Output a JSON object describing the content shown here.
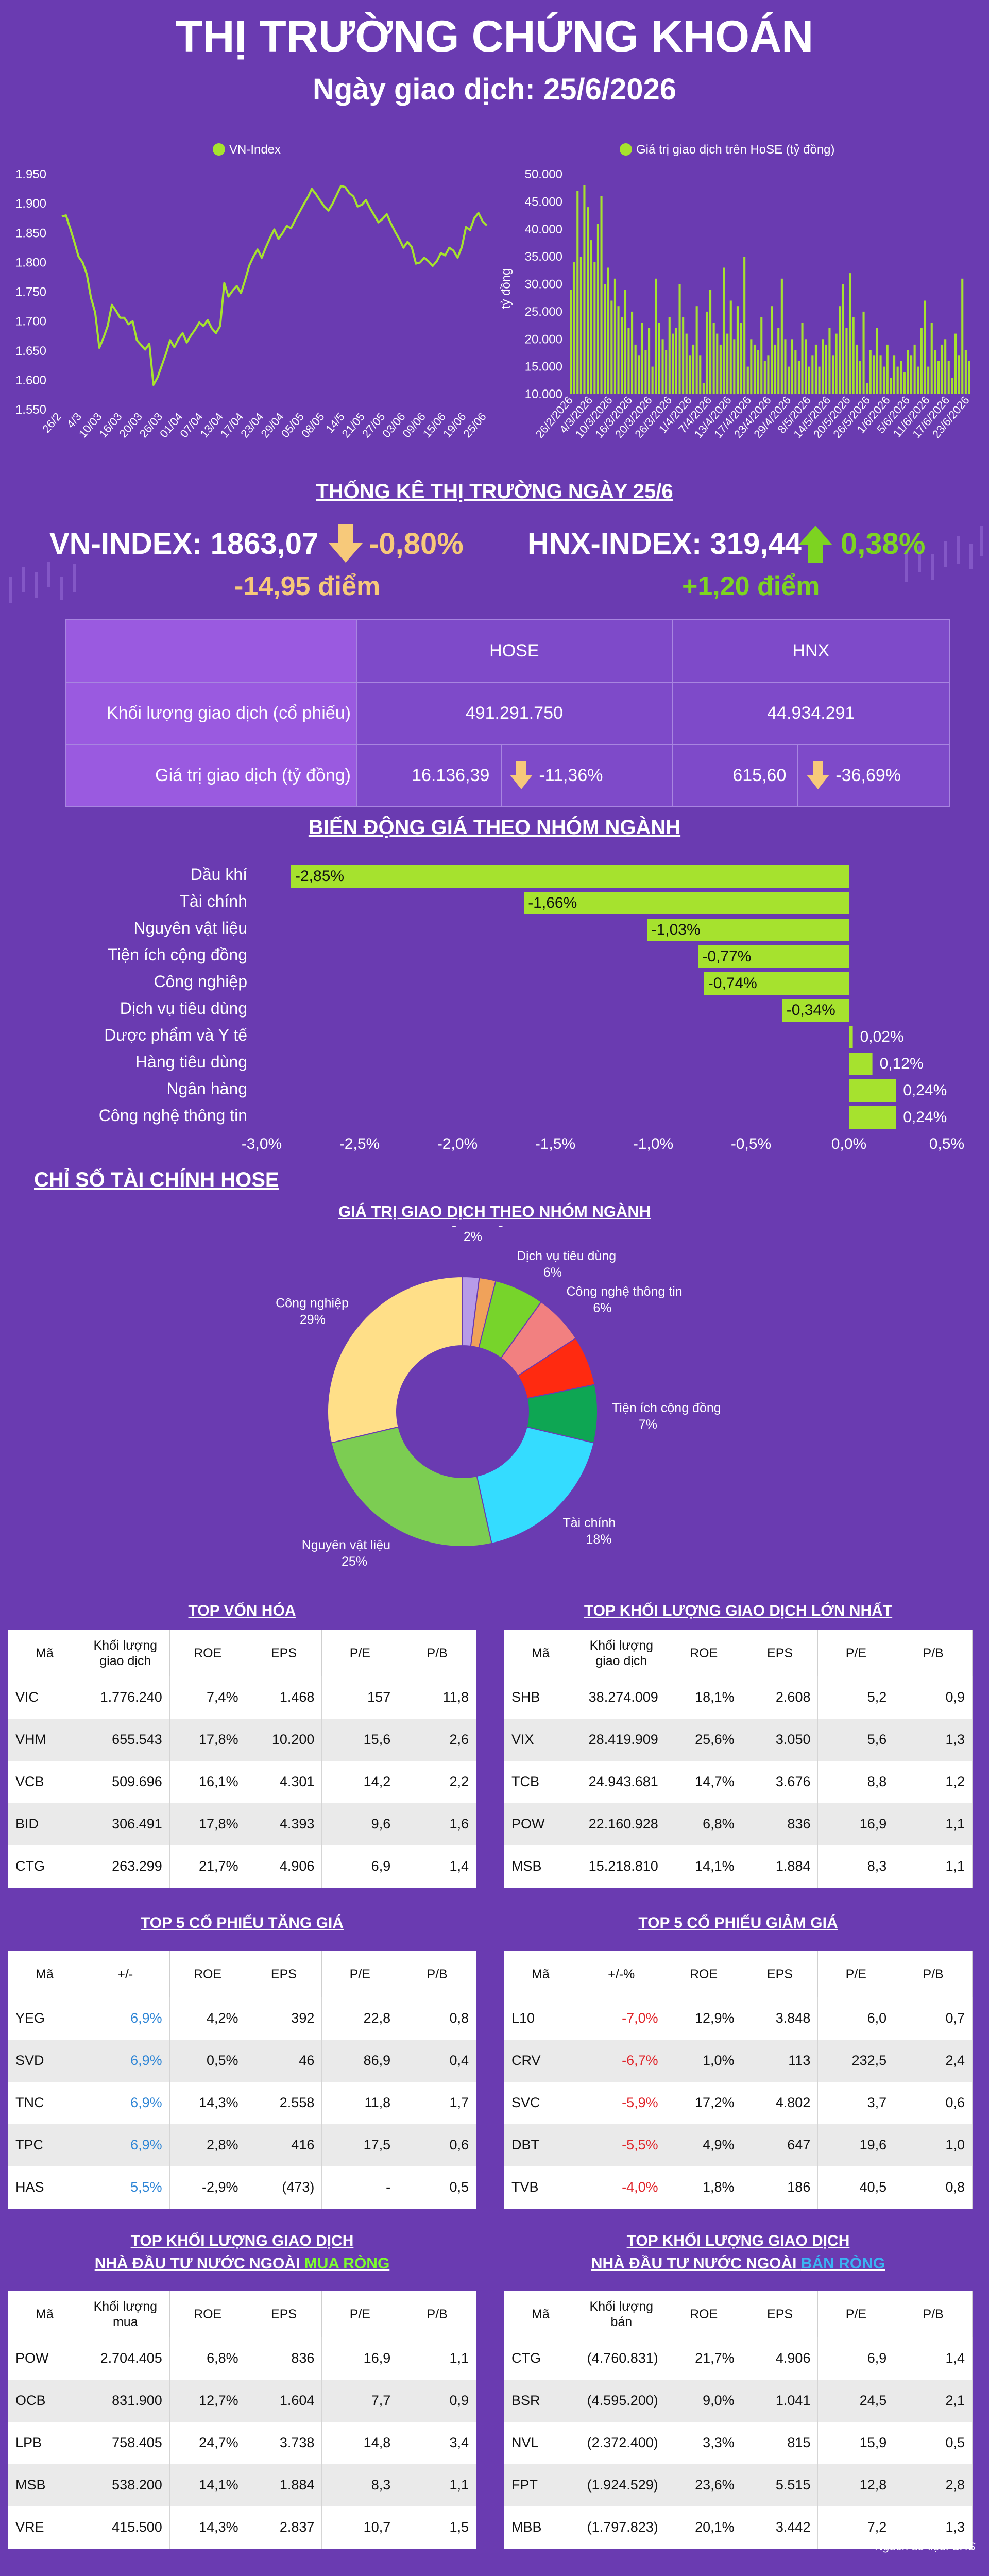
{
  "header": {
    "title": "THỊ TRƯỜNG CHỨNG KHOÁN",
    "date": "Ngày giao dịch: 25/6/2026"
  },
  "colors": {
    "background": "#6a3bb1",
    "accent_green": "#a6e22e",
    "down_arrow": "#f7c97a",
    "up_arrow": "#7dd321",
    "highlight_blue": "#3ab4f2"
  },
  "stats": {
    "title": "THỐNG KÊ THỊ TRƯỜNG NGÀY 25/6",
    "vnindex": {
      "label": "VN-INDEX: 1863,07",
      "pct": "-0,80%",
      "points": "-14,95 điểm",
      "direction": "down"
    },
    "hnxindex": {
      "label": "HNX-INDEX: 319,44",
      "pct": "0,38%",
      "points": "+1,20 điểm",
      "direction": "up"
    }
  },
  "summary_table": {
    "headers": [
      "HOSE",
      "HNX"
    ],
    "rows": [
      {
        "label": "Khối lượng giao dịch (cổ phiếu)",
        "hose": "491.291.750",
        "hnx": "44.934.291"
      },
      {
        "label": "Giá trị giao dịch (tỷ đồng)",
        "hose": "16.136,39",
        "hose_change": "-11,36%",
        "hnx": "615,60",
        "hnx_change": "-36,69%"
      }
    ]
  },
  "sector_title": "BIẾN ĐỘNG GIÁ THEO NHÓM NGÀNH",
  "financial_title": "CHỈ SỐ TÀI CHÍNH HOSE",
  "tables": {
    "top_cap": {
      "title": "TOP VỐN HÓA",
      "headers": [
        "Mã",
        "Khối lượng giao dịch",
        "ROE",
        "EPS",
        "P/E",
        "P/B"
      ],
      "rows": [
        [
          "VIC",
          "1.776.240",
          "7,4%",
          "1.468",
          "157",
          "11,8"
        ],
        [
          "VHM",
          "655.543",
          "17,8%",
          "10.200",
          "15,6",
          "2,6"
        ],
        [
          "VCB",
          "509.696",
          "16,1%",
          "4.301",
          "14,2",
          "2,2"
        ],
        [
          "BID",
          "306.491",
          "17,8%",
          "4.393",
          "9,6",
          "1,6"
        ],
        [
          "CTG",
          "263.299",
          "21,7%",
          "4.906",
          "6,9",
          "1,4"
        ]
      ]
    },
    "top_volume": {
      "title": "TOP KHỐI LƯỢNG GIAO DỊCH LỚN NHẤT",
      "headers": [
        "Mã",
        "Khối lượng giao dịch",
        "ROE",
        "EPS",
        "P/E",
        "P/B"
      ],
      "rows": [
        [
          "SHB",
          "38.274.009",
          "18,1%",
          "2.608",
          "5,2",
          "0,9"
        ],
        [
          "VIX",
          "28.419.909",
          "25,6%",
          "3.050",
          "5,6",
          "1,3"
        ],
        [
          "TCB",
          "24.943.681",
          "14,7%",
          "3.676",
          "8,8",
          "1,2"
        ],
        [
          "POW",
          "22.160.928",
          "6,8%",
          "836",
          "16,9",
          "1,1"
        ],
        [
          "MSB",
          "15.218.810",
          "14,1%",
          "1.884",
          "8,3",
          "1,1"
        ]
      ]
    },
    "top_gainers": {
      "title": "TOP 5 CỔ PHIẾU TĂNG GIÁ",
      "headers": [
        "Mã",
        "+/-",
        "ROE",
        "EPS",
        "P/E",
        "P/B"
      ],
      "rows": [
        [
          "YEG",
          "6,9%",
          "4,2%",
          "392",
          "22,8",
          "0,8"
        ],
        [
          "SVD",
          "6,9%",
          "0,5%",
          "46",
          "86,9",
          "0,4"
        ],
        [
          "TNC",
          "6,9%",
          "14,3%",
          "2.558",
          "11,8",
          "1,7"
        ],
        [
          "TPC",
          "6,9%",
          "2,8%",
          "416",
          "17,5",
          "0,6"
        ],
        [
          "HAS",
          "5,5%",
          "-2,9%",
          "(473)",
          "-",
          "0,5"
        ]
      ]
    },
    "top_losers": {
      "title": "TOP 5 CỔ PHIẾU GIẢM GIÁ",
      "headers": [
        "Mã",
        "+/-%",
        "ROE",
        "EPS",
        "P/E",
        "P/B"
      ],
      "rows": [
        [
          "L10",
          "-7,0%",
          "12,9%",
          "3.848",
          "6,0",
          "0,7"
        ],
        [
          "CRV",
          "-6,7%",
          "1,0%",
          "113",
          "232,5",
          "2,4"
        ],
        [
          "SVC",
          "-5,9%",
          "17,2%",
          "4.802",
          "3,7",
          "0,6"
        ],
        [
          "DBT",
          "-5,5%",
          "4,9%",
          "647",
          "19,6",
          "1,0"
        ],
        [
          "TVB",
          "-4,0%",
          "1,8%",
          "186",
          "40,5",
          "0,8"
        ]
      ]
    },
    "foreign_buy": {
      "title1": "TOP KHỐI LƯỢNG GIAO DỊCH",
      "title2": "NHÀ ĐẦU TƯ NƯỚC NGOÀI ",
      "title_hl": "MUA RÒNG",
      "headers": [
        "Mã",
        "Khối lượng mua",
        "ROE",
        "EPS",
        "P/E",
        "P/B"
      ],
      "rows": [
        [
          "POW",
          "2.704.405",
          "6,8%",
          "836",
          "16,9",
          "1,1"
        ],
        [
          "OCB",
          "831.900",
          "12,7%",
          "1.604",
          "7,7",
          "0,9"
        ],
        [
          "LPB",
          "758.405",
          "24,7%",
          "3.738",
          "14,8",
          "3,4"
        ],
        [
          "MSB",
          "538.200",
          "14,1%",
          "1.884",
          "8,3",
          "1,1"
        ],
        [
          "VRE",
          "415.500",
          "14,3%",
          "2.837",
          "10,7",
          "1,5"
        ]
      ]
    },
    "foreign_sell": {
      "title1": "TOP KHỐI LƯỢNG GIAO DỊCH",
      "title2": "NHÀ ĐẦU TƯ NƯỚC NGOÀI ",
      "title_hl": "BÁN RÒNG",
      "headers": [
        "Mã",
        "Khối lượng bán",
        "ROE",
        "EPS",
        "P/E",
        "P/B"
      ],
      "rows": [
        [
          "CTG",
          "(4.760.831)",
          "21,7%",
          "4.906",
          "6,9",
          "1,4"
        ],
        [
          "BSR",
          "(4.595.200)",
          "9,0%",
          "1.041",
          "24,5",
          "2,1"
        ],
        [
          "NVL",
          "(2.372.400)",
          "3,3%",
          "815",
          "15,9",
          "0,5"
        ],
        [
          "FPT",
          "(1.924.529)",
          "23,6%",
          "5.515",
          "12,8",
          "2,8"
        ],
        [
          "MBB",
          "(1.797.823)",
          "20,1%",
          "3.442",
          "7,2",
          "1,3"
        ]
      ]
    }
  },
  "source": "Nguồn dữ liệu: SHS",
  "chart_data": [
    {
      "type": "line",
      "legend": "VN-Index",
      "color": "#a6e22e",
      "ylim": [
        1550,
        1950
      ],
      "yticks": [
        "1.550",
        "1.600",
        "1.650",
        "1.700",
        "1.750",
        "1.800",
        "1.850",
        "1.900",
        "1.950"
      ],
      "xticklabels": [
        "26/2",
        "4/3",
        "10/03",
        "16/03",
        "20/03",
        "26/03",
        "01/04",
        "07/04",
        "13/04",
        "17/04",
        "23/04",
        "29/04",
        "05/05",
        "08/05",
        "14/5",
        "21/05",
        "27/05",
        "03/06",
        "09/06",
        "15/06",
        "19/06",
        "25/06"
      ],
      "values": [
        1878,
        1880,
        1858,
        1835,
        1810,
        1800,
        1780,
        1740,
        1715,
        1655,
        1672,
        1692,
        1728,
        1718,
        1706,
        1706,
        1695,
        1700,
        1668,
        1660,
        1652,
        1662,
        1592,
        1605,
        1625,
        1645,
        1668,
        1656,
        1670,
        1680,
        1664,
        1676,
        1686,
        1698,
        1692,
        1702,
        1688,
        1680,
        1692,
        1765,
        1742,
        1752,
        1760,
        1748,
        1770,
        1795,
        1810,
        1822,
        1808,
        1826,
        1842,
        1856,
        1840,
        1850,
        1862,
        1858,
        1872,
        1885,
        1898,
        1910,
        1925,
        1916,
        1905,
        1895,
        1888,
        1900,
        1915,
        1930,
        1928,
        1918,
        1912,
        1895,
        1898,
        1906,
        1892,
        1880,
        1868,
        1874,
        1882,
        1866,
        1852,
        1840,
        1825,
        1835,
        1826,
        1798,
        1800,
        1808,
        1802,
        1794,
        1802,
        1816,
        1812,
        1825,
        1820,
        1808,
        1826,
        1860,
        1855,
        1875,
        1884,
        1870,
        1863
      ]
    },
    {
      "type": "bar",
      "legend": "Giá trị giao dịch trên HoSE (tỷ đồng)",
      "ylabel": "tỷ đồng",
      "color": "#a6e22e",
      "ylim": [
        10000,
        50000
      ],
      "yticks": [
        "10.000",
        "15.000",
        "20.000",
        "25.000",
        "30.000",
        "35.000",
        "40.000",
        "45.000",
        "50.000"
      ],
      "xticklabels": [
        "26/2/2026",
        "4/3/2026",
        "10/3/2026",
        "16/3/2026",
        "20/3/2026",
        "26/3/2026",
        "1/4/2026",
        "7/4/2026",
        "13/4/2026",
        "17/4/2026",
        "23/4/2026",
        "29/4/2026",
        "8/5/2026",
        "14/5/2026",
        "20/5/2026",
        "26/5/2026",
        "1/6/2026",
        "5/6/2026",
        "11/6/2026",
        "17/6/2026",
        "23/6/2026"
      ],
      "values": [
        29000,
        34000,
        47000,
        35000,
        48000,
        44000,
        38000,
        34000,
        41000,
        46000,
        30000,
        33000,
        27000,
        31000,
        26000,
        24000,
        29000,
        22000,
        25000,
        19000,
        17000,
        23000,
        18000,
        22000,
        15000,
        31000,
        23000,
        20000,
        18000,
        24000,
        21000,
        22000,
        30000,
        24000,
        21000,
        17000,
        19000,
        26000,
        17000,
        12000,
        25000,
        29000,
        23000,
        21000,
        19000,
        33000,
        21000,
        27000,
        20000,
        26000,
        23000,
        35000,
        15000,
        20000,
        19000,
        18000,
        24000,
        16000,
        17000,
        26000,
        19000,
        22000,
        31000,
        20000,
        15000,
        20000,
        18000,
        16000,
        23000,
        20000,
        15000,
        17000,
        19000,
        15000,
        20000,
        19000,
        22000,
        17000,
        21000,
        26000,
        30000,
        22000,
        32000,
        24000,
        19000,
        16000,
        25000,
        12000,
        18000,
        17000,
        22000,
        17000,
        15000,
        19000,
        13000,
        17000,
        15000,
        16000,
        14000,
        18000,
        17000,
        19000,
        15000,
        22000,
        27000,
        15000,
        23000,
        18000,
        16000,
        19000,
        20000,
        16000,
        13000,
        21000,
        17000,
        31000,
        18000,
        16000
      ]
    },
    {
      "type": "bar",
      "orientation": "horizontal",
      "title": "BIẾN ĐỘNG GIÁ THEO NHÓM NGÀNH",
      "categories": [
        "Dầu khí",
        "Tài chính",
        "Nguyên vật liệu",
        "Tiện ích cộng đồng",
        "Công nghiệp",
        "Dịch vụ tiêu dùng",
        "Dược phẩm và Y tế",
        "Hàng tiêu dùng",
        "Ngân hàng",
        "Công nghệ thông tin"
      ],
      "values": [
        -2.85,
        -1.66,
        -1.03,
        -0.77,
        -0.74,
        -0.34,
        0.02,
        0.12,
        0.24,
        0.24
      ],
      "value_labels": [
        "-2,85%",
        "-1,66%",
        "-1,03%",
        "-0,77%",
        "-0,74%",
        "-0,34%",
        "0,02%",
        "0,12%",
        "0,24%",
        "0,24%"
      ],
      "xlim": [
        -3.0,
        0.5
      ],
      "xticks": [
        "-3,0%",
        "-2,5%",
        "-2,0%",
        "-1,5%",
        "-1,0%",
        "-0,5%",
        "0,0%",
        "0,5%"
      ]
    },
    {
      "type": "pie",
      "title": "GIÁ TRỊ GIAO DỊCH THEO NHÓM NGÀNH",
      "slices": [
        {
          "name": "Ngân hàng",
          "label": "2%",
          "value": 2,
          "color": "#b79be8"
        },
        {
          "name": "",
          "label": "",
          "value": 2,
          "color": "#f0a25a"
        },
        {
          "name": "Dịch vụ tiêu dùng",
          "label": "6%",
          "value": 6,
          "color": "#77d42b"
        },
        {
          "name": "Công nghệ thông tin",
          "label": "6%",
          "value": 6,
          "color": "#f28080"
        },
        {
          "name": "",
          "label": "",
          "value": 6,
          "color": "#ff2a10"
        },
        {
          "name": "Tiện ích cộng đồng",
          "label": "7%",
          "value": 7,
          "color": "#0ea653"
        },
        {
          "name": "Tài chính",
          "label": "18%",
          "value": 18,
          "color": "#34dcff"
        },
        {
          "name": "Nguyên vật liệu",
          "label": "25%",
          "value": 25,
          "color": "#7ccd52"
        },
        {
          "name": "Công nghiệp",
          "label": "29%",
          "value": 29,
          "color": "#ffdf88"
        }
      ]
    }
  ]
}
